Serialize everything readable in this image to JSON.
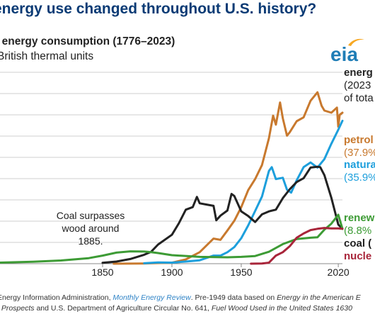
{
  "header": {
    "title_visible": "energy use changed throughout U.S. history?"
  },
  "chart_data": {
    "type": "line",
    "title": ". energy consumption (1776–2023)",
    "subtitle": "British thermal units",
    "x_ticks": [
      "1850",
      "1900",
      "1950",
      "2020"
    ],
    "xlim": [
      1776,
      2023
    ],
    "ylim": [
      0,
      45
    ],
    "grid": true,
    "annotation": {
      "lines": [
        "Coal surpasses",
        "wood around",
        "1885."
      ]
    },
    "right_labels": {
      "header": [
        "energ",
        "(2023",
        "of tota"
      ],
      "petroleum": [
        "petrol",
        "(37.9%"
      ],
      "natural_gas": [
        "natura",
        "(35.9%"
      ],
      "renewables": [
        "renew",
        "(8.8%"
      ],
      "coal": [
        "coal ("
      ],
      "nuclear": [
        "nucle"
      ]
    },
    "series": [
      {
        "key": "petroleum",
        "color": "#c8792e",
        "x": [
          1858,
          1870,
          1880,
          1890,
          1900,
          1910,
          1920,
          1925,
          1930,
          1935,
          1940,
          1945,
          1950,
          1955,
          1960,
          1965,
          1970,
          1973,
          1975,
          1978,
          1980,
          1983,
          1985,
          1990,
          1995,
          2000,
          2005,
          2008,
          2010,
          2015,
          2019,
          2020,
          2021,
          2023
        ],
        "y": [
          0,
          0.02,
          0.05,
          0.15,
          0.23,
          1.0,
          2.7,
          4.3,
          5.9,
          5.6,
          7.8,
          10.1,
          13.3,
          17.3,
          19.9,
          23.2,
          29.5,
          34.8,
          32.7,
          37.9,
          34.2,
          30.1,
          30.9,
          33.5,
          34.4,
          38.3,
          40.3,
          37.1,
          36.0,
          35.5,
          36.7,
          32.2,
          35.0,
          35.5
        ]
      },
      {
        "key": "natural_gas",
        "color": "#1d9fdc",
        "x": [
          1880,
          1890,
          1900,
          1910,
          1920,
          1930,
          1935,
          1940,
          1945,
          1950,
          1955,
          1960,
          1965,
          1970,
          1972,
          1975,
          1980,
          1983,
          1986,
          1990,
          1995,
          2000,
          2005,
          2008,
          2010,
          2015,
          2020,
          2023
        ],
        "y": [
          0.1,
          0.3,
          0.25,
          0.5,
          0.8,
          1.9,
          1.9,
          2.7,
          3.9,
          6.0,
          9.0,
          12.4,
          15.8,
          21.8,
          22.7,
          19.9,
          20.2,
          17.4,
          16.7,
          19.6,
          22.7,
          23.8,
          22.6,
          23.8,
          24.6,
          28.2,
          31.5,
          33.6
        ]
      },
      {
        "key": "coal",
        "color": "#222222",
        "x": [
          1850,
          1860,
          1870,
          1880,
          1885,
          1890,
          1900,
          1905,
          1910,
          1915,
          1918,
          1920,
          1925,
          1930,
          1932,
          1935,
          1940,
          1943,
          1945,
          1950,
          1955,
          1960,
          1965,
          1970,
          1975,
          1980,
          1985,
          1990,
          1995,
          2000,
          2005,
          2007,
          2010,
          2015,
          2020,
          2023
        ],
        "y": [
          0.2,
          0.5,
          1.1,
          2.1,
          2.8,
          4.5,
          6.8,
          9.5,
          12.7,
          13.3,
          15.7,
          14.2,
          13.9,
          13.6,
          10.2,
          11.3,
          12.5,
          16.4,
          15.9,
          12.3,
          11.2,
          9.8,
          11.6,
          12.3,
          12.7,
          15.4,
          17.5,
          19.2,
          20.1,
          22.6,
          22.8,
          22.7,
          20.8,
          15.5,
          9.2,
          8.2
        ]
      },
      {
        "key": "renewables",
        "color": "#3d9b35",
        "x": [
          1776,
          1800,
          1820,
          1840,
          1850,
          1860,
          1870,
          1880,
          1885,
          1890,
          1900,
          1920,
          1940,
          1950,
          1960,
          1970,
          1980,
          1990,
          2000,
          2005,
          2010,
          2015,
          2020,
          2023
        ],
        "y": [
          0.25,
          0.45,
          0.75,
          1.3,
          1.9,
          2.6,
          2.9,
          2.85,
          2.7,
          2.5,
          2.0,
          1.6,
          1.5,
          1.6,
          1.8,
          2.8,
          4.6,
          5.8,
          6.1,
          6.2,
          8.0,
          9.4,
          11.5,
          8.2
        ]
      },
      {
        "key": "nuclear",
        "color": "#a8253a",
        "x": [
          1957,
          1965,
          1970,
          1975,
          1980,
          1985,
          1990,
          1995,
          2000,
          2005,
          2010,
          2015,
          2020,
          2023
        ],
        "y": [
          0,
          0.04,
          0.24,
          1.9,
          2.7,
          4.1,
          6.1,
          7.1,
          7.9,
          8.2,
          8.4,
          8.3,
          8.3,
          8.2
        ]
      }
    ]
  },
  "source": {
    "line1_pre": "Energy Information Administration, ",
    "line1_link": "Monthly Energy Review",
    "line1_mid": ". Pre-1949 data based on ",
    "line1_italic": "Energy in the American E",
    "line2_pre": "f Prospects",
    "line2_mid": " and U.S. Department of Agriculture Circular No. 641, ",
    "line2_italic": "Fuel Wood Used in the United States 1630"
  },
  "logo_text": "eia",
  "colors": {
    "title_blue": "#0b3b75",
    "logo_teal": "#1f7db6",
    "logo_swoosh": "#f7a823",
    "grid": "#cfcfcf"
  }
}
